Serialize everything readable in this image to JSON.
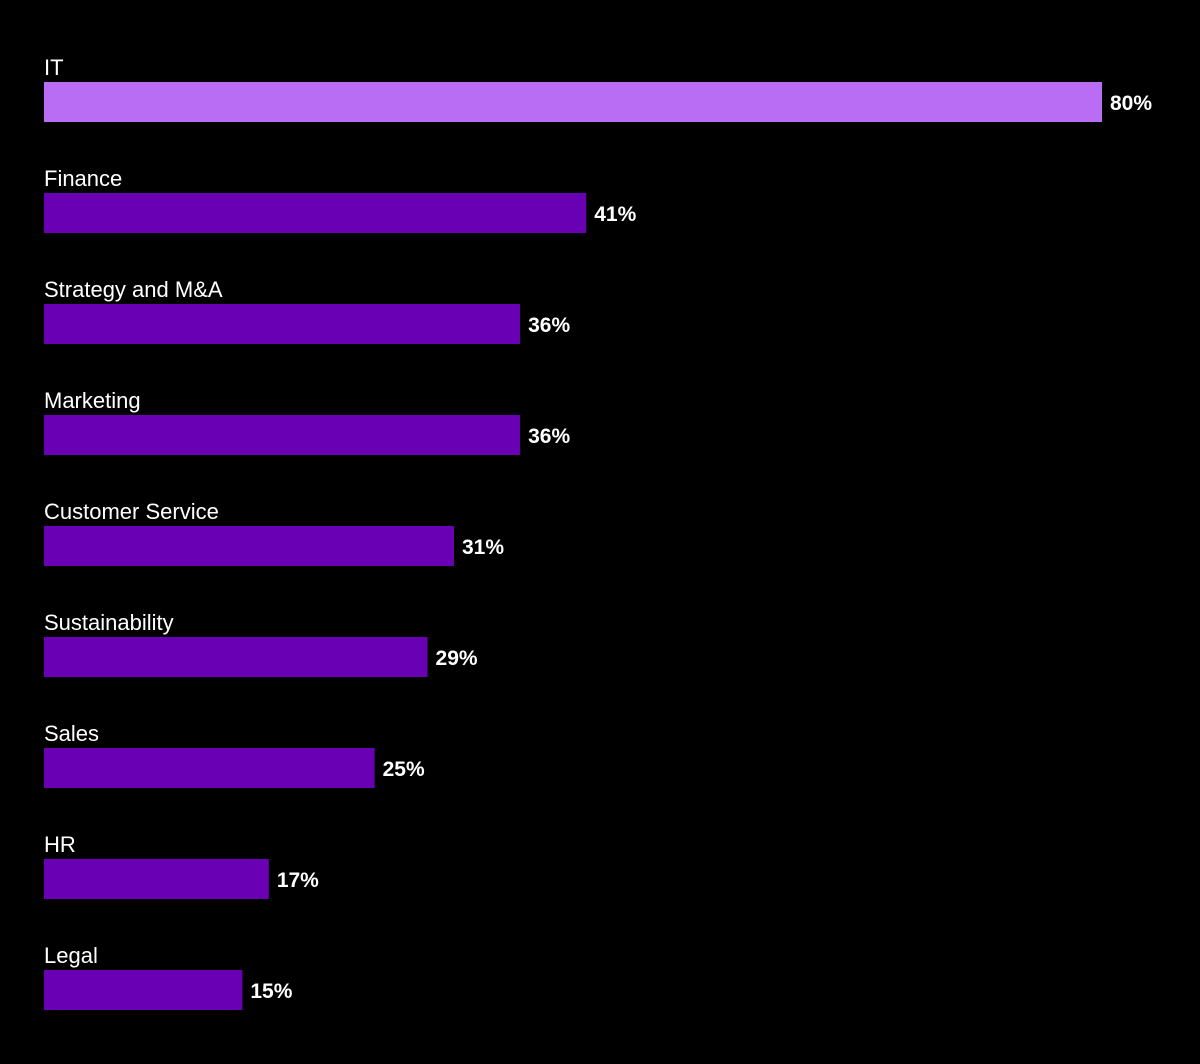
{
  "chart_data": {
    "type": "bar",
    "orientation": "horizontal",
    "categories": [
      "IT",
      "Finance",
      "Strategy and M&A",
      "Marketing",
      "Customer Service",
      "Sustainability",
      "Sales",
      "HR",
      "Legal"
    ],
    "values": [
      80,
      41,
      36,
      36,
      31,
      29,
      25,
      17,
      15
    ],
    "value_labels": [
      "80%",
      "41%",
      "36%",
      "36%",
      "31%",
      "29%",
      "25%",
      "17%",
      "15%"
    ],
    "unit": "%",
    "xlim": [
      0,
      80
    ],
    "grid": false,
    "legend": "none",
    "colors": {
      "background": "#000000",
      "highlight_bar": "#b96cf4",
      "bar": "#6a00b3",
      "text": "#ffffff"
    },
    "highlight_index": 0
  }
}
